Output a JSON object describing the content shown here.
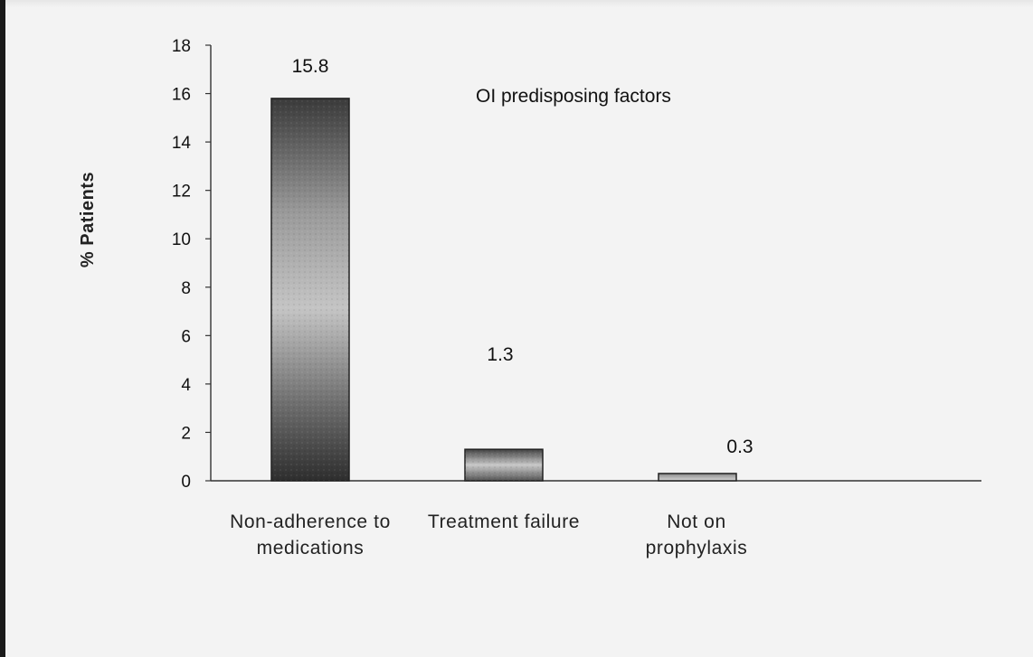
{
  "chart_data": {
    "type": "bar",
    "title": "",
    "ylabel": "% Patients",
    "xlabel": "",
    "legend": "OI predisposing factors",
    "legend_position": "top-right",
    "categories": [
      [
        "Non-adherence to",
        "medications"
      ],
      [
        "Treatment failure"
      ],
      [
        "Not on",
        "prophylaxis"
      ]
    ],
    "values": [
      15.8,
      1.3,
      0.3
    ],
    "data_labels": [
      "15.8",
      "1.3",
      "0.3"
    ],
    "ylim": [
      0,
      18
    ],
    "yticks": [
      "0",
      "2",
      "4",
      "6",
      "8",
      "10",
      "12",
      "14",
      "16",
      "18"
    ],
    "grid": false
  }
}
